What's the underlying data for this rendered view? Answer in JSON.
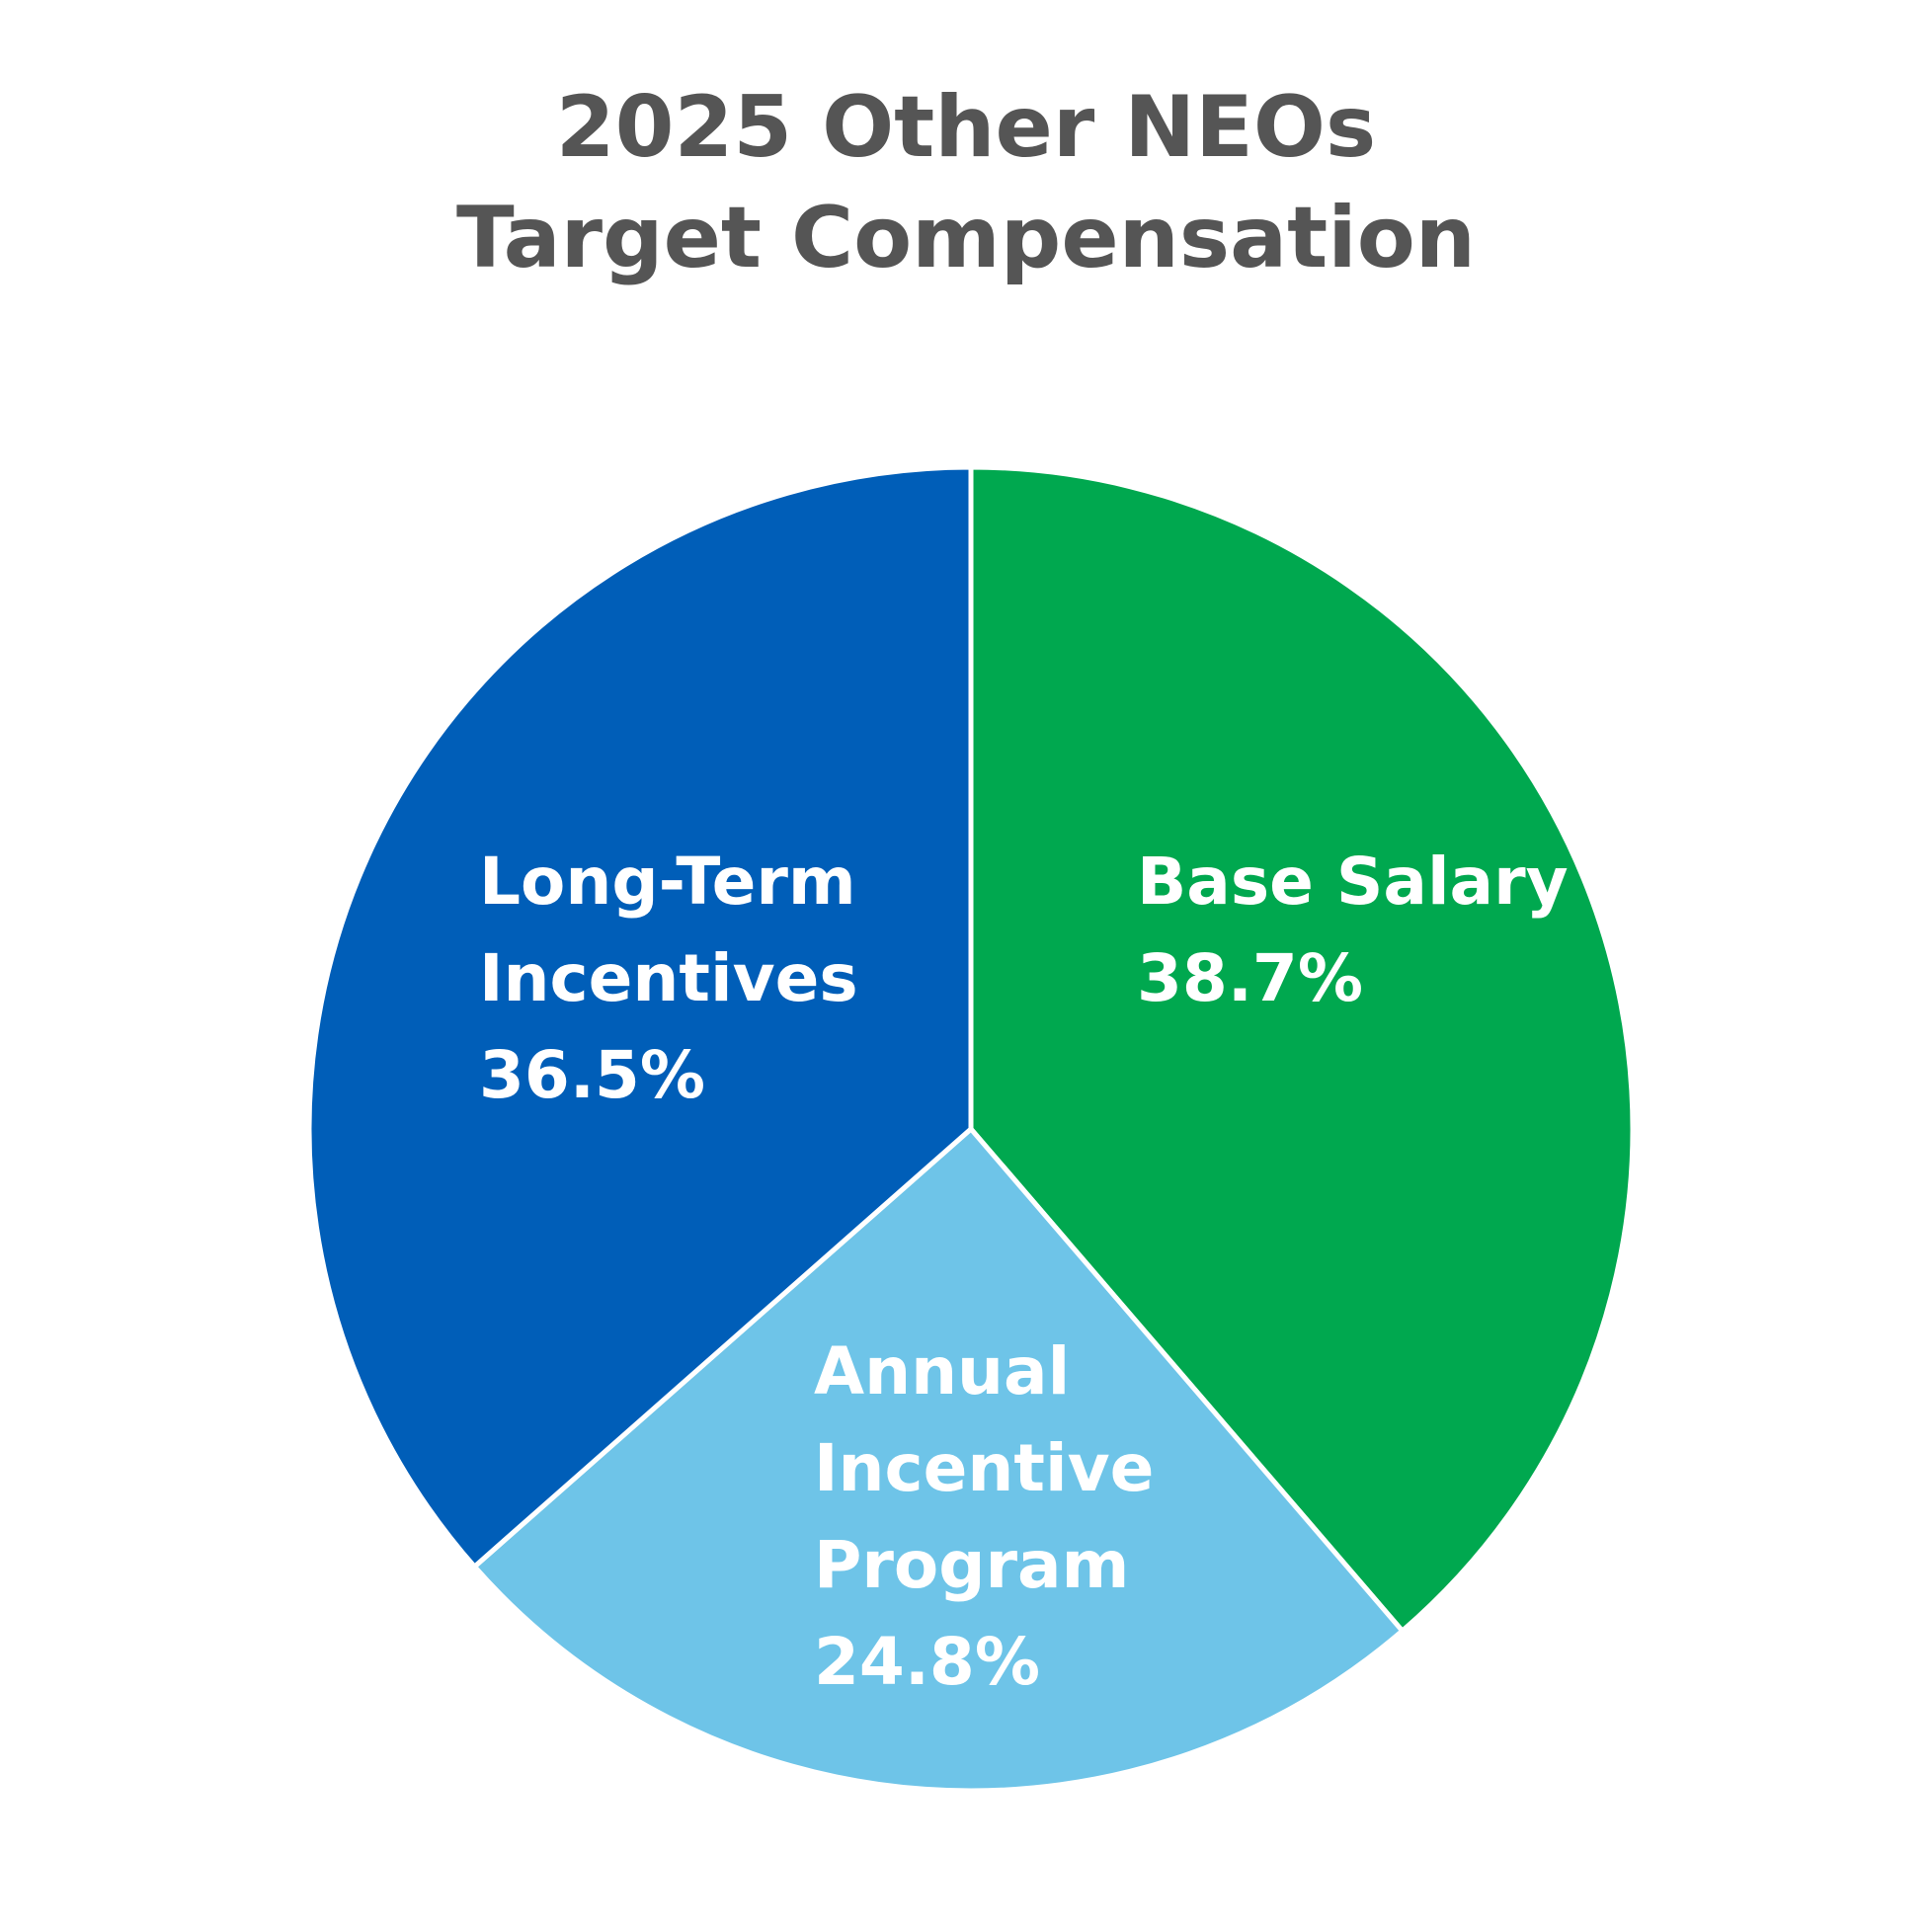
{
  "chart_data": {
    "type": "pie",
    "title": [
      "2025 Other NEOs",
      "Target Compensation"
    ],
    "categories": [
      "Base Salary",
      "Annual Incentive Program",
      "Long-Term Incentives"
    ],
    "values": [
      38.7,
      24.8,
      36.5
    ],
    "value_labels": [
      "38.7%",
      "24.8%",
      "36.5%"
    ],
    "colors": [
      "#00a84f",
      "#6ec4e8",
      "#005eb8"
    ]
  }
}
